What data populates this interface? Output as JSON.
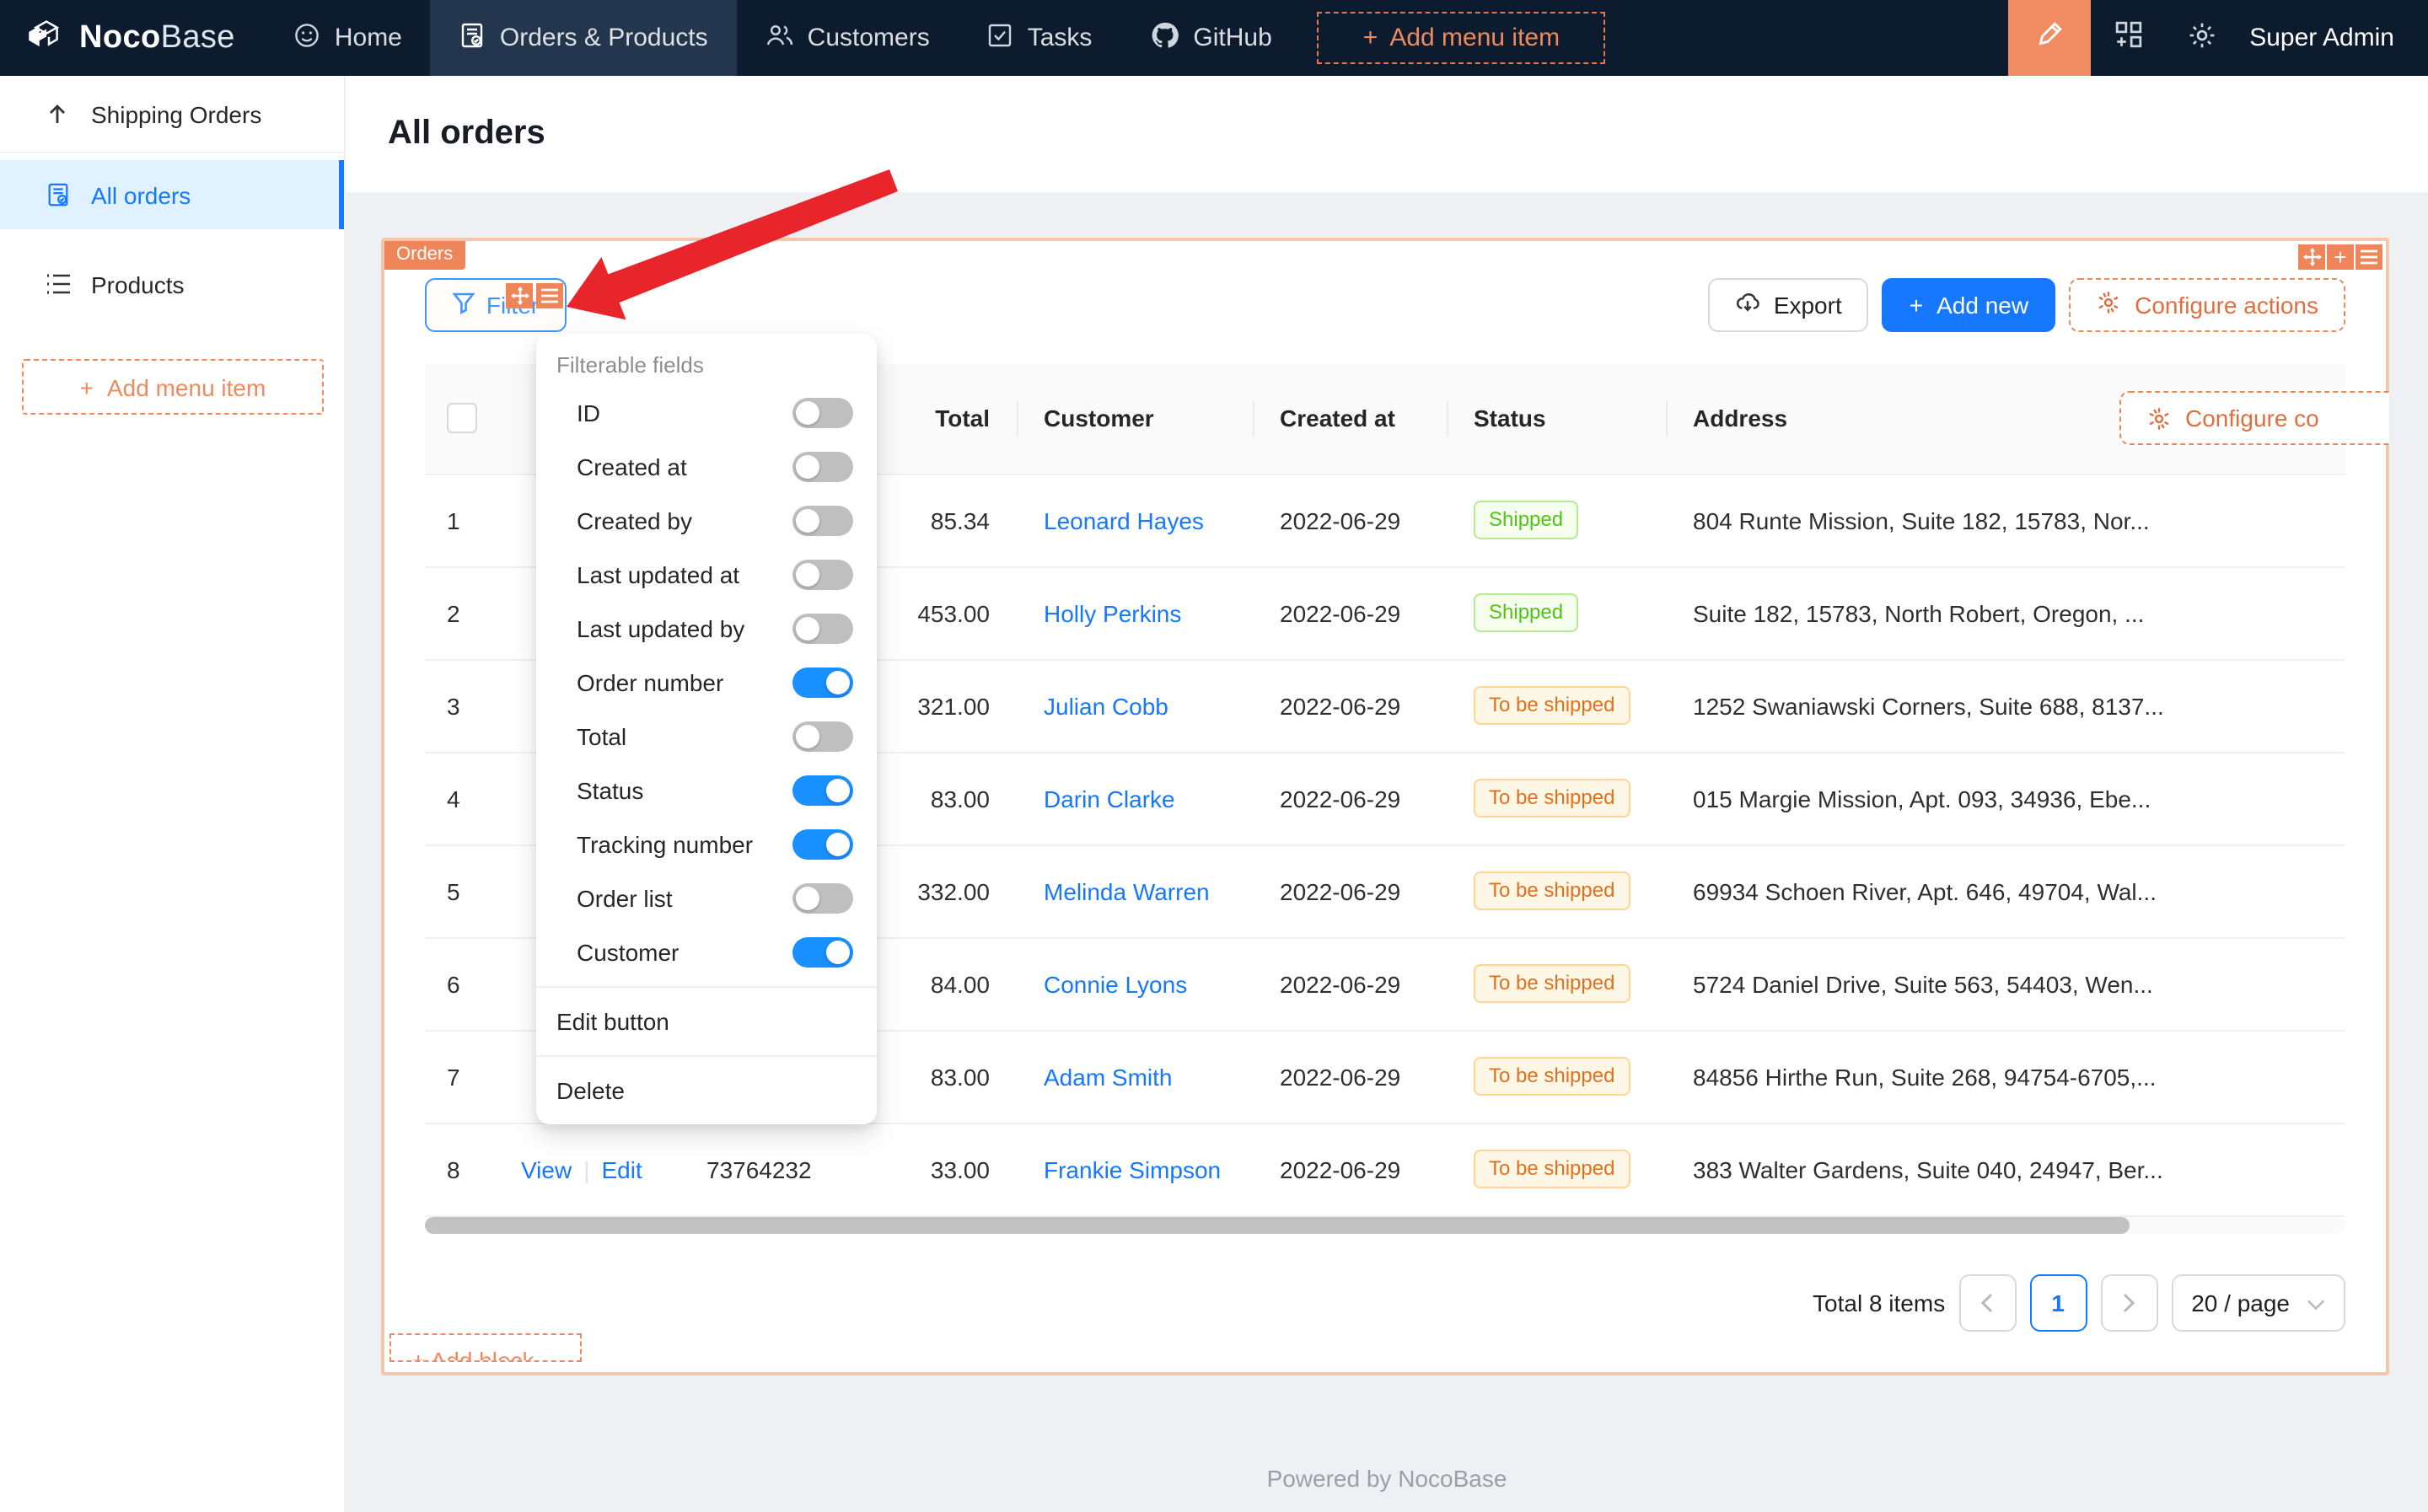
{
  "colors": {
    "accent_orange": "#f18b62",
    "primary_blue": "#1677ff",
    "navbar_bg": "#0d1b2e",
    "block_border": "#f3c7ab",
    "switch_on": "#1890ff",
    "badge_green": "#52c41a",
    "badge_orange": "#e1701e",
    "arrow_red": "#e8252a"
  },
  "navbar": {
    "brand_primary": "Noco",
    "brand_secondary": "Base",
    "items": [
      {
        "label": "Home",
        "icon": "smiley-icon",
        "active": false
      },
      {
        "label": "Orders & Products",
        "icon": "orders-doc-icon",
        "active": true
      },
      {
        "label": "Customers",
        "icon": "people-icon",
        "active": false
      },
      {
        "label": "Tasks",
        "icon": "check-square-icon",
        "active": false
      },
      {
        "label": "GitHub",
        "icon": "github-icon",
        "active": false
      }
    ],
    "add_menu_item": "Add menu item",
    "user": "Super Admin"
  },
  "sidebar": {
    "items": [
      {
        "label": "Shipping Orders",
        "icon": "arrow-up-icon",
        "active": false
      },
      {
        "label": "All orders",
        "icon": "file-check-icon",
        "active": true
      },
      {
        "label": "Products",
        "icon": "list-icon",
        "active": false
      }
    ],
    "add_menu_item": "Add menu item"
  },
  "page": {
    "title": "All orders",
    "block_tag": "Orders",
    "footer": "Powered by NocoBase",
    "add_block_label": "+ Add block"
  },
  "toolbar": {
    "filter": "Filter",
    "export": "Export",
    "add_new": "Add new",
    "configure_actions": "Configure actions"
  },
  "filter_dropdown": {
    "title": "Filterable fields",
    "fields": [
      {
        "label": "ID",
        "enabled": false
      },
      {
        "label": "Created at",
        "enabled": false
      },
      {
        "label": "Created by",
        "enabled": false
      },
      {
        "label": "Last updated at",
        "enabled": false
      },
      {
        "label": "Last updated by",
        "enabled": false
      },
      {
        "label": "Order number",
        "enabled": true
      },
      {
        "label": "Total",
        "enabled": false
      },
      {
        "label": "Status",
        "enabled": true
      },
      {
        "label": "Tracking number",
        "enabled": true
      },
      {
        "label": "Order list",
        "enabled": false
      },
      {
        "label": "Customer",
        "enabled": true
      }
    ],
    "actions": [
      "Edit button",
      "Delete"
    ]
  },
  "table": {
    "headers": {
      "total": "Total",
      "customer": "Customer",
      "created_at": "Created at",
      "status": "Status",
      "address": "Address"
    },
    "configure_columns": "Configure co",
    "rows": [
      {
        "index": "1",
        "view": "",
        "edit": "",
        "order_number": "",
        "total": "85.34",
        "customer": "Leonard Hayes",
        "created_at": "2022-06-29",
        "status": "Shipped",
        "status_type": "green",
        "address": "804 Runte Mission, Suite 182, 15783, Nor..."
      },
      {
        "index": "2",
        "view": "",
        "edit": "",
        "order_number": "",
        "total": "453.00",
        "customer": "Holly Perkins",
        "created_at": "2022-06-29",
        "status": "Shipped",
        "status_type": "green",
        "address": "Suite 182, 15783, North Robert, Oregon, ..."
      },
      {
        "index": "3",
        "view": "",
        "edit": "",
        "order_number": "",
        "total": "321.00",
        "customer": "Julian Cobb",
        "created_at": "2022-06-29",
        "status": "To be shipped",
        "status_type": "orange",
        "address": "1252 Swaniawski Corners, Suite 688, 8137..."
      },
      {
        "index": "4",
        "view": "",
        "edit": "",
        "order_number": "",
        "total": "83.00",
        "customer": "Darin Clarke",
        "created_at": "2022-06-29",
        "status": "To be shipped",
        "status_type": "orange",
        "address": "015 Margie Mission, Apt. 093, 34936, Ebe..."
      },
      {
        "index": "5",
        "view": "",
        "edit": "",
        "order_number": "",
        "total": "332.00",
        "customer": "Melinda Warren",
        "created_at": "2022-06-29",
        "status": "To be shipped",
        "status_type": "orange",
        "address": "69934 Schoen River, Apt. 646, 49704, Wal..."
      },
      {
        "index": "6",
        "view": "",
        "edit": "",
        "order_number": "",
        "total": "84.00",
        "customer": "Connie Lyons",
        "created_at": "2022-06-29",
        "status": "To be shipped",
        "status_type": "orange",
        "address": "5724 Daniel Drive, Suite 563, 54403, Wen..."
      },
      {
        "index": "7",
        "view": "",
        "edit": "",
        "order_number": "",
        "total": "83.00",
        "customer": "Adam Smith",
        "created_at": "2022-06-29",
        "status": "To be shipped",
        "status_type": "orange",
        "address": "84856 Hirthe Run, Suite 268, 94754-6705,..."
      },
      {
        "index": "8",
        "view": "View",
        "edit": "Edit",
        "order_number": "73764232",
        "total": "33.00",
        "customer": "Frankie Simpson",
        "created_at": "2022-06-29",
        "status": "To be shipped",
        "status_type": "orange",
        "address": "383 Walter Gardens, Suite 040, 24947, Ber..."
      }
    ]
  },
  "pagination": {
    "total_text": "Total 8 items",
    "current_page": "1",
    "page_size": "20 / page"
  }
}
